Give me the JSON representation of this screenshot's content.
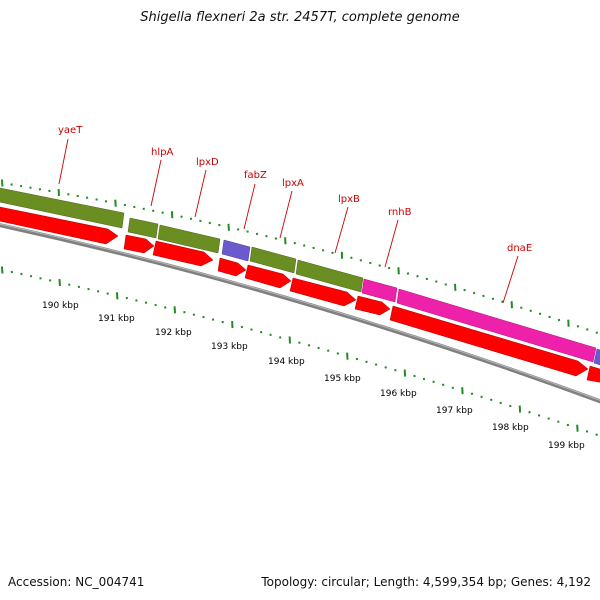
{
  "title": "Shigella flexneri 2a str. 2457T, complete genome",
  "footer": {
    "accession": "Accession: NC_004741",
    "summary": "Topology: circular; Length: 4,599,354 bp; Genes: 4,192"
  },
  "colors": {
    "cds_forward": "#6b8e23",
    "rna_blue": "#6a5acd",
    "other_magenta": "#ee22aa",
    "cds_reverse": "#ff0000",
    "backbone": "#808080",
    "tick": "#228b22",
    "gene_label": "#cc0000",
    "label_line": "#cc0000"
  },
  "gene_labels": [
    "yaeT",
    "hlpA",
    "lpxD",
    "fabZ",
    "lpxA",
    "lpxB",
    "rnhB",
    "dnaE"
  ],
  "kbp_labels": [
    "190 kbp",
    "191 kbp",
    "192 kbp",
    "193 kbp",
    "194 kbp",
    "195 kbp",
    "196 kbp",
    "197 kbp",
    "198 kbp",
    "199 kbp"
  ]
}
